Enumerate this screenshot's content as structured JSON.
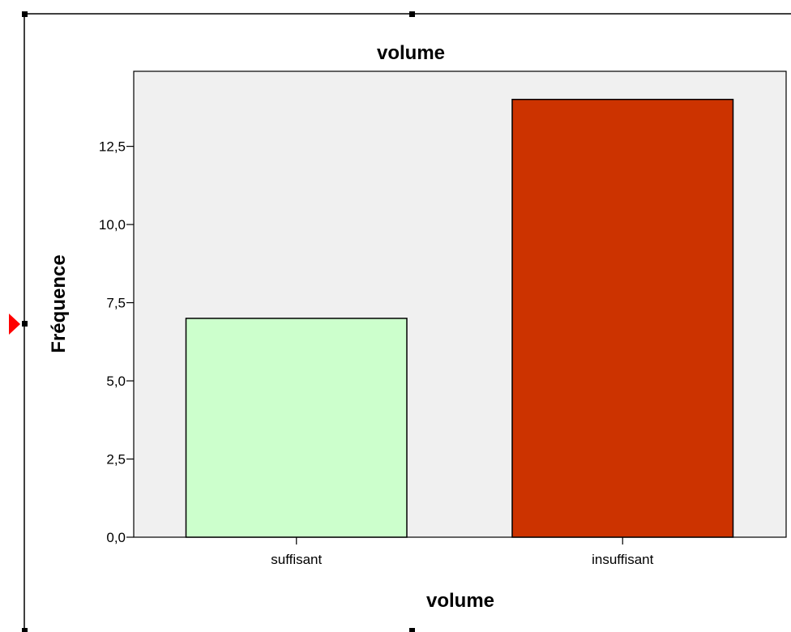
{
  "chart_data": {
    "type": "bar",
    "title": "volume",
    "xlabel": "volume",
    "ylabel": "Fréquence",
    "categories": [
      "suffisant",
      "insuffisant"
    ],
    "values": [
      7,
      14
    ],
    "ylim": [
      0,
      14.9
    ],
    "yticks": [
      0,
      2.5,
      5,
      7.5,
      10,
      12.5
    ],
    "ytick_labels": [
      "0,0",
      "2,5",
      "5,0",
      "7,5",
      "10,0",
      "12,5"
    ],
    "grid": false,
    "legend": "none",
    "colors": {
      "bars": [
        "#ccffcc",
        "#cc3300"
      ],
      "plot_background": "#f0f0f0",
      "selection_marker": "#ff0000"
    }
  }
}
